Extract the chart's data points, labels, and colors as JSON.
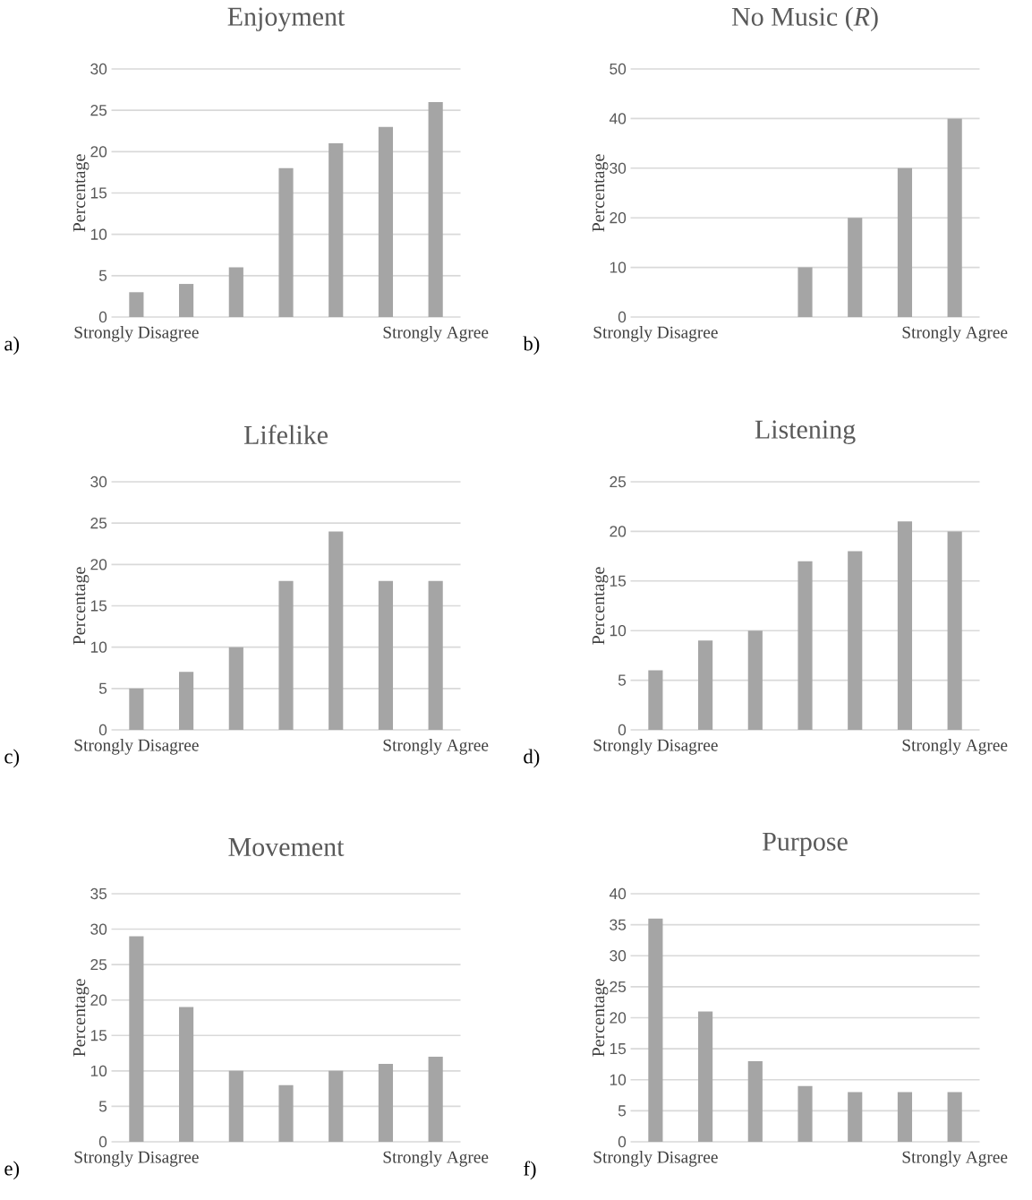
{
  "chart_data": [
    {
      "type": "bar",
      "title": "Enjoyment",
      "ylabel": "Percentage",
      "categories": [
        "Strongly Disagree",
        null,
        null,
        null,
        null,
        null,
        "Strongly Agree"
      ],
      "values": [
        3,
        4,
        6,
        18,
        21,
        23,
        26
      ],
      "color": "#a5a5a5",
      "ylim": [
        0,
        30
      ],
      "yticks": [
        0,
        5,
        10,
        15,
        20,
        25,
        30
      ],
      "grid": "y",
      "annotations": [
        "a)"
      ]
    },
    {
      "type": "bar",
      "title": "No Music (*R*)",
      "ylabel": "Percentage",
      "categories": [
        "Strongly Disagree",
        null,
        null,
        null,
        null,
        null,
        "Strongly Agree"
      ],
      "values": [
        0,
        0,
        0,
        10,
        20,
        30,
        40
      ],
      "color": "#a5a5a5",
      "ylim": [
        0,
        50
      ],
      "yticks": [
        0,
        10,
        20,
        30,
        40,
        50
      ],
      "grid": "y",
      "annotations": [
        "b)"
      ]
    },
    {
      "type": "bar",
      "title": "Lifelike",
      "ylabel": "Percentage",
      "categories": [
        "Strongly Disagree",
        null,
        null,
        null,
        null,
        null,
        "Strongly Agree"
      ],
      "values": [
        5,
        7,
        10,
        18,
        24,
        18,
        18
      ],
      "color": "#a5a5a5",
      "ylim": [
        0,
        30
      ],
      "yticks": [
        0,
        5,
        10,
        15,
        20,
        25,
        30
      ],
      "grid": "y",
      "annotations": [
        "c)"
      ]
    },
    {
      "type": "bar",
      "title": "Listening",
      "ylabel": "Percentage",
      "categories": [
        "Strongly Disagree",
        null,
        null,
        null,
        null,
        null,
        "Strongly Agree"
      ],
      "values": [
        6,
        9,
        10,
        17,
        18,
        21,
        20
      ],
      "color": "#a5a5a5",
      "ylim": [
        0,
        25
      ],
      "yticks": [
        0,
        5,
        10,
        15,
        20,
        25
      ],
      "grid": "y",
      "annotations": [
        "d)"
      ]
    },
    {
      "type": "bar",
      "title": "Movement",
      "ylabel": "Percentage",
      "categories": [
        "Strongly Disagree",
        null,
        null,
        null,
        null,
        null,
        "Strongly Agree"
      ],
      "values": [
        29,
        19,
        10,
        8,
        10,
        11,
        12
      ],
      "color": "#a5a5a5",
      "ylim": [
        0,
        35
      ],
      "yticks": [
        0,
        5,
        10,
        15,
        20,
        25,
        30,
        35
      ],
      "grid": "y",
      "annotations": [
        "e)"
      ]
    },
    {
      "type": "bar",
      "title": "Purpose",
      "ylabel": "Percentage",
      "categories": [
        "Strongly Disagree",
        null,
        null,
        null,
        null,
        null,
        "Strongly Agree"
      ],
      "values": [
        36,
        21,
        13,
        9,
        8,
        8,
        8
      ],
      "color": "#a5a5a5",
      "ylim": [
        0,
        40
      ],
      "yticks": [
        0,
        5,
        10,
        15,
        20,
        25,
        30,
        35,
        40
      ],
      "grid": "y",
      "annotations": [
        "f)"
      ]
    }
  ]
}
